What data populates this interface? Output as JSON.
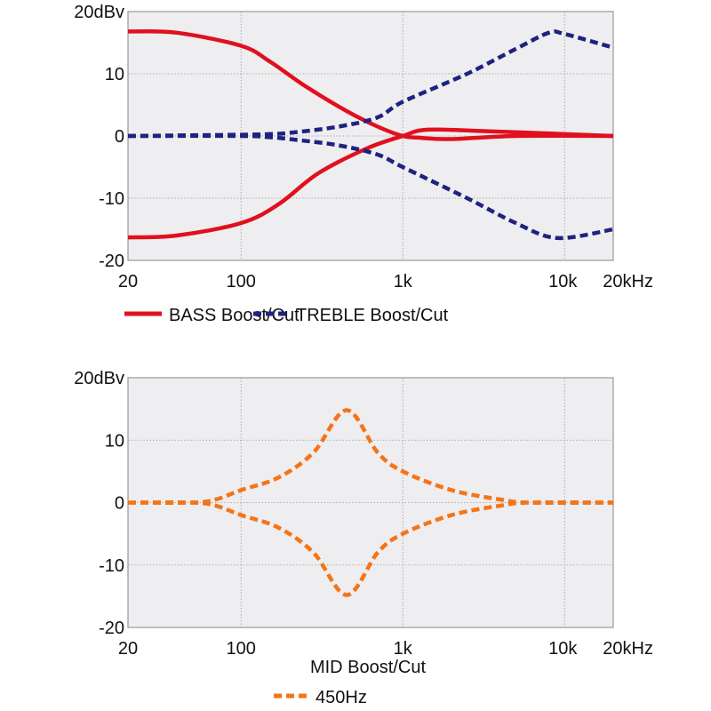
{
  "colors": {
    "bass": "#e0101e",
    "treble": "#1e237f",
    "mid": "#f57418",
    "plot_bg": "#eeedf0",
    "grid": "#9a9a9a"
  },
  "chart_data": [
    {
      "type": "line",
      "xscale": "log",
      "xlim": [
        20,
        20000
      ],
      "ylim": [
        -20,
        20
      ],
      "grid": true,
      "x_ticks": [
        {
          "v": 20,
          "label": "20"
        },
        {
          "v": 100,
          "label": "100"
        },
        {
          "v": 1000,
          "label": "1k"
        },
        {
          "v": 10000,
          "label": "10k"
        },
        {
          "v": 20000,
          "label": "20kHz"
        }
      ],
      "y_ticks": [
        {
          "v": 20,
          "label": "20dBv"
        },
        {
          "v": 10,
          "label": "10"
        },
        {
          "v": 0,
          "label": "0"
        },
        {
          "v": -10,
          "label": "-10"
        },
        {
          "v": -20,
          "label": "-20"
        }
      ],
      "legend": [
        {
          "label": "BASS Boost/Cut",
          "style": "solid",
          "color_key": "bass"
        },
        {
          "label": "TREBLE Boost/Cut",
          "style": "dashed",
          "color_key": "treble"
        }
      ],
      "series": [
        {
          "group": "bass",
          "style": "solid",
          "x": [
            20,
            40,
            100,
            150,
            250,
            450,
            700,
            1000,
            1300,
            2000,
            5000,
            20000
          ],
          "y": [
            16.8,
            16.6,
            14.5,
            12,
            8,
            4,
            1.5,
            0,
            -0.3,
            -0.5,
            0,
            0
          ]
        },
        {
          "group": "bass",
          "style": "solid",
          "x": [
            20,
            40,
            100,
            170,
            300,
            600,
            1000,
            1400,
            3000,
            10000,
            20000
          ],
          "y": [
            -16.3,
            -16,
            -14,
            -11,
            -6,
            -2,
            0,
            1,
            0.8,
            0.3,
            0
          ]
        },
        {
          "group": "treble",
          "style": "dashed",
          "x": [
            20,
            100,
            150,
            200,
            400,
            700,
            1000,
            2500,
            5000,
            8000,
            10000,
            20000
          ],
          "y": [
            0,
            0.2,
            0.3,
            0.5,
            1.5,
            3,
            5.5,
            10,
            14,
            16.6,
            16.4,
            14.2
          ]
        },
        {
          "group": "treble",
          "style": "dashed",
          "x": [
            20,
            100,
            150,
            200,
            400,
            700,
            1000,
            2500,
            5000,
            9000,
            20000
          ],
          "y": [
            0,
            0,
            -0.2,
            -0.5,
            -1.5,
            -3,
            -5,
            -10,
            -14,
            -16.4,
            -15
          ]
        }
      ]
    },
    {
      "type": "line",
      "xscale": "log",
      "xlim": [
        20,
        20000
      ],
      "ylim": [
        -20,
        20
      ],
      "grid": true,
      "x_ticks": [
        {
          "v": 20,
          "label": "20"
        },
        {
          "v": 100,
          "label": "100"
        },
        {
          "v": 1000,
          "label": "1k"
        },
        {
          "v": 10000,
          "label": "10k"
        },
        {
          "v": 20000,
          "label": "20kHz"
        }
      ],
      "y_ticks": [
        {
          "v": 20,
          "label": "20dBv"
        },
        {
          "v": 10,
          "label": "10"
        },
        {
          "v": 0,
          "label": "0"
        },
        {
          "v": -10,
          "label": "-10"
        },
        {
          "v": -20,
          "label": "-20"
        }
      ],
      "title": "MID Boost/Cut",
      "legend": [
        {
          "label": "450Hz",
          "style": "dashed",
          "color_key": "mid"
        }
      ],
      "series": [
        {
          "group": "mid",
          "style": "dashed",
          "x": [
            20,
            50,
            70,
            100,
            170,
            280,
            450,
            700,
            1000,
            2000,
            4000,
            6000,
            20000
          ],
          "y": [
            0,
            0,
            0.5,
            2,
            4,
            8,
            14.8,
            8,
            5,
            2,
            0.5,
            0,
            0
          ]
        },
        {
          "group": "mid",
          "style": "dashed",
          "x": [
            20,
            50,
            70,
            100,
            170,
            280,
            450,
            700,
            1000,
            2000,
            4000,
            6000,
            20000
          ],
          "y": [
            0,
            0,
            -0.5,
            -2,
            -4,
            -8,
            -14.8,
            -8,
            -5,
            -2,
            -0.5,
            0,
            0
          ]
        }
      ]
    }
  ]
}
